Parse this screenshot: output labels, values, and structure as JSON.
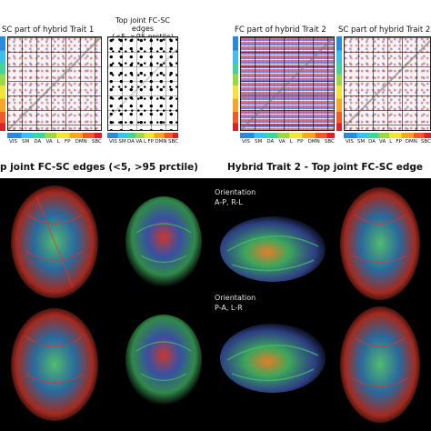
{
  "top": {
    "left_matrix_title": "SC part of hybrid Trait 1",
    "joint_edges_title_line1": "Top joint FC-SC edges",
    "joint_edges_title_line2": "(<5, >95 prctile)",
    "fc_matrix_title": "FC part of hybrid Trait 2",
    "right_matrix_title": "SC part of hybrid Trait 2",
    "network_labels": [
      "VIS",
      "SM",
      "DA",
      "VA",
      "L",
      "FP",
      "DMN",
      "SBC"
    ]
  },
  "section_titles": {
    "left": "p  joint FC-SC edges (<5, >95 prctile)",
    "right": "Hybrid Trait 2 - Top  joint FC-SC edge"
  },
  "orientations": [
    {
      "label": "Orientation",
      "value": "A-P, R-L"
    },
    {
      "label": "Orientation",
      "value": "P-A, L-R"
    }
  ],
  "colors": {
    "background": "#ffffff",
    "brain_background": "#000000",
    "tract_red": "#d9382a",
    "tract_green": "#46c46a",
    "tract_blue": "#4a6ad8"
  }
}
